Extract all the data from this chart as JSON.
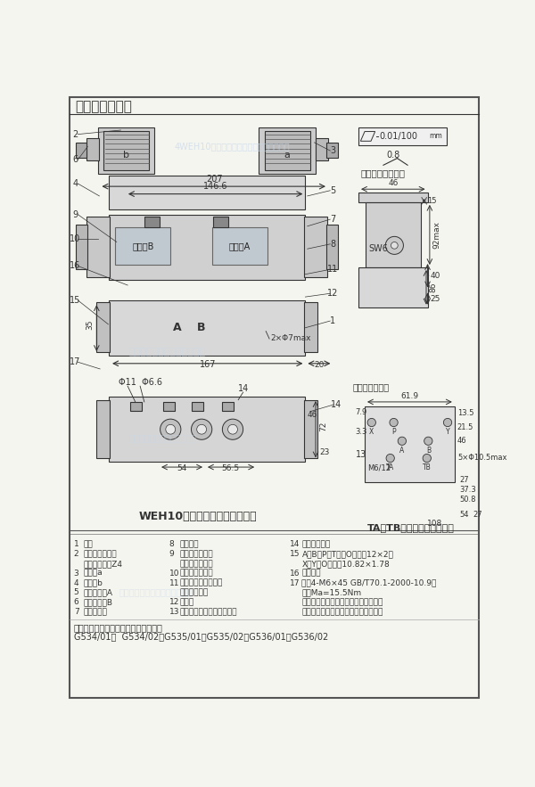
{
  "title": "外形及连接尺寸",
  "bg_color": "#f5f5f0",
  "border_color": "#888888",
  "line_color": "#333333",
  "light_line_color": "#aaaaaa",
  "watermark_color": "#c8d8e8",
  "subtitle_drawing": "WEH10型电液换向阀外形尺寸图",
  "subtitle_note": "TA和TB可任选一个作回油口",
  "bottom_note": "如需连接底板，必须单独订货，型号：",
  "bottom_models": "G534/01；  G534/02；G535/01；G535/02；G536/01；G536/02",
  "legend_rows": [
    [
      "1",
      "主阀",
      "8",
      "手动按钮",
      "14",
      "先导油口位置"
    ],
    [
      "2",
      "二位阀，带一个",
      "9",
      "双电磁铁二位阀",
      "15",
      "A、B、P和T口的O形圈：12×2；"
    ],
    [
      "",
      "电磁铁和插头Z4",
      "",
      "双电磁铁三位阀",
      "",
      "X和Y的O形圈：10.82×1.78"
    ],
    [
      "3",
      "电磁铁a",
      "10",
      "换向时间调节器",
      "16",
      "整阀标牌"
    ],
    [
      "4",
      "电磁铁b",
      "11",
      "换向时间调节器的节",
      "17",
      "螺钉4-M6×45 GB/T70.1-2000-10.9级"
    ],
    [
      "5",
      "电磁铁插头A",
      "",
      "口流「全开」",
      "",
      "力矩Ma=15.5Nm"
    ],
    [
      "6",
      "电磁铁插头B",
      "12",
      "减压阀",
      "",
      "（与电液换向阀组合的垂直叠加组件的"
    ],
    [
      "7",
      "先导阀标牌",
      "13",
      "主阀油口布置（阀安装面）",
      "",
      "螺钉根据实际高度选择）必须单独订货"
    ]
  ]
}
